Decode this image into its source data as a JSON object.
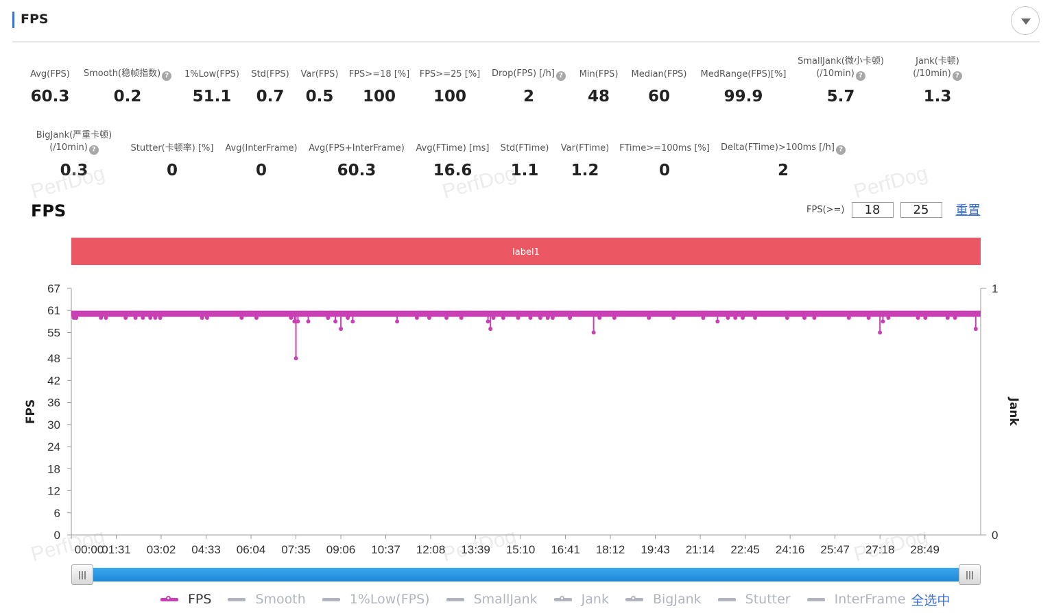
{
  "header": {
    "title": "FPS"
  },
  "metrics_row1": [
    {
      "label": "Avg(FPS)",
      "value": "60.3",
      "help": false
    },
    {
      "label": "Smooth(稳帧指数)",
      "value": "0.2",
      "help": true
    },
    {
      "label": "1%Low(FPS)",
      "value": "51.1",
      "help": false
    },
    {
      "label": "Std(FPS)",
      "value": "0.7",
      "help": false
    },
    {
      "label": "Var(FPS)",
      "value": "0.5",
      "help": false
    },
    {
      "label": "FPS>=18 [%]",
      "value": "100",
      "help": false
    },
    {
      "label": "FPS>=25 [%]",
      "value": "100",
      "help": false
    },
    {
      "label": "Drop(FPS) [/h]",
      "value": "2",
      "help": true
    },
    {
      "label": "Min(FPS)",
      "value": "48",
      "help": false
    },
    {
      "label": "Median(FPS)",
      "value": "60",
      "help": false
    },
    {
      "label": "MedRange(FPS)[%]",
      "value": "99.9",
      "help": false
    },
    {
      "label": "SmallJank(微小卡顿)",
      "label2": "(/10min)",
      "value": "5.7",
      "help": true
    },
    {
      "label": "Jank(卡顿)",
      "label2": "(/10min)",
      "value": "1.3",
      "help": true
    }
  ],
  "metrics_row2": [
    {
      "label": "BigJank(严重卡顿)",
      "label2": "(/10min)",
      "value": "0.3",
      "help": true
    },
    {
      "label": "Stutter(卡顿率) [%]",
      "value": "0",
      "help": false
    },
    {
      "label": "Avg(InterFrame)",
      "value": "0",
      "help": false
    },
    {
      "label": "Avg(FPS+InterFrame)",
      "value": "60.3",
      "help": false
    },
    {
      "label": "Avg(FTime) [ms]",
      "value": "16.6",
      "help": false
    },
    {
      "label": "Std(FTime)",
      "value": "1.1",
      "help": false
    },
    {
      "label": "Var(FTime)",
      "value": "1.2",
      "help": false
    },
    {
      "label": "FTime>=100ms [%]",
      "value": "0",
      "help": false
    },
    {
      "label": "Delta(FTime)>100ms [/h]",
      "value": "2",
      "help": true
    }
  ],
  "chart_section": {
    "title": "FPS",
    "filter_label": "FPS(>=)",
    "threshold_1": "18",
    "threshold_2": "25",
    "reset_label": "重置",
    "band_label": "label1"
  },
  "watermark": "PerfDog",
  "legend": [
    {
      "name": "FPS",
      "active": true,
      "color": "#c940b5",
      "dot": true
    },
    {
      "name": "Smooth",
      "active": false,
      "color": "#b0b4bf",
      "dot": false
    },
    {
      "name": "1%Low(FPS)",
      "active": false,
      "color": "#b0b4bf",
      "dot": false
    },
    {
      "name": "SmallJank",
      "active": false,
      "color": "#b0b4bf",
      "dot": false
    },
    {
      "name": "Jank",
      "active": false,
      "color": "#b0b4bf",
      "dot": true
    },
    {
      "name": "BigJank",
      "active": false,
      "color": "#b0b4bf",
      "dot": true
    },
    {
      "name": "Stutter",
      "active": false,
      "color": "#b0b4bf",
      "dot": false
    },
    {
      "name": "InterFrame",
      "active": false,
      "color": "#b0b4bf",
      "dot": false
    }
  ],
  "select_all_label": "全选中",
  "colors": {
    "accent": "#3b6fd8",
    "fps_series": "#c940b5",
    "band": "#eb5763",
    "scroll": "#2a97e6"
  },
  "chart_data": {
    "type": "line",
    "ylabel": "FPS",
    "y2label": "Jank",
    "ylim": [
      0,
      67
    ],
    "yticks": [
      0,
      6,
      12,
      18,
      24,
      30,
      36,
      42,
      48,
      55,
      61,
      67
    ],
    "y2ticks": [
      0,
      1
    ],
    "xlim_seconds": [
      0,
      1842
    ],
    "xticks": [
      "00:00",
      "01:31",
      "03:02",
      "04:33",
      "06:04",
      "07:35",
      "09:06",
      "10:37",
      "12:08",
      "13:39",
      "15:10",
      "16:41",
      "18:12",
      "19:43",
      "21:14",
      "22:45",
      "24:16",
      "25:47",
      "27:18",
      "28:49"
    ],
    "grid": false,
    "series": [
      {
        "name": "FPS",
        "baseline": 60,
        "dips": [
          {
            "t": "07:35",
            "value": 48
          },
          {
            "t": "09:06",
            "value": 56
          },
          {
            "t": "14:09",
            "value": 56
          },
          {
            "t": "17:38",
            "value": 55
          },
          {
            "t": "27:18",
            "value": 55
          },
          {
            "t": "30:32",
            "value": 56
          },
          {
            "t": "07:32",
            "value": 58
          },
          {
            "t": "08:55",
            "value": 58
          },
          {
            "t": "09:30",
            "value": 58
          },
          {
            "t": "11:00",
            "value": 58
          },
          {
            "t": "14:04",
            "value": 58
          },
          {
            "t": "21:49",
            "value": 58
          },
          {
            "t": "07:39",
            "value": 58
          },
          {
            "t": "08:00",
            "value": 58
          },
          {
            "t": "27:24",
            "value": 58
          },
          {
            "t": "00:05",
            "value": 59
          },
          {
            "t": "00:10",
            "value": 59
          },
          {
            "t": "01:00",
            "value": 59
          },
          {
            "t": "01:10",
            "value": 59
          },
          {
            "t": "01:50",
            "value": 59
          },
          {
            "t": "02:10",
            "value": 59
          },
          {
            "t": "02:25",
            "value": 59
          },
          {
            "t": "02:40",
            "value": 59
          },
          {
            "t": "02:50",
            "value": 59
          },
          {
            "t": "03:00",
            "value": 59
          },
          {
            "t": "04:25",
            "value": 59
          },
          {
            "t": "04:35",
            "value": 59
          },
          {
            "t": "05:45",
            "value": 59
          },
          {
            "t": "06:15",
            "value": 59
          },
          {
            "t": "07:25",
            "value": 59
          },
          {
            "t": "08:40",
            "value": 59
          },
          {
            "t": "09:20",
            "value": 59
          },
          {
            "t": "11:40",
            "value": 59
          },
          {
            "t": "12:05",
            "value": 59
          },
          {
            "t": "12:40",
            "value": 59
          },
          {
            "t": "13:10",
            "value": 59
          },
          {
            "t": "14:15",
            "value": 59
          },
          {
            "t": "14:35",
            "value": 59
          },
          {
            "t": "15:05",
            "value": 59
          },
          {
            "t": "15:30",
            "value": 59
          },
          {
            "t": "15:50",
            "value": 59
          },
          {
            "t": "16:05",
            "value": 59
          },
          {
            "t": "16:15",
            "value": 59
          },
          {
            "t": "16:50",
            "value": 59
          },
          {
            "t": "17:50",
            "value": 59
          },
          {
            "t": "18:20",
            "value": 59
          },
          {
            "t": "19:30",
            "value": 59
          },
          {
            "t": "20:20",
            "value": 59
          },
          {
            "t": "21:20",
            "value": 59
          },
          {
            "t": "22:10",
            "value": 59
          },
          {
            "t": "22:25",
            "value": 59
          },
          {
            "t": "22:40",
            "value": 59
          },
          {
            "t": "23:05",
            "value": 59
          },
          {
            "t": "24:10",
            "value": 59
          },
          {
            "t": "24:45",
            "value": 59
          },
          {
            "t": "25:05",
            "value": 59
          },
          {
            "t": "26:15",
            "value": 59
          },
          {
            "t": "26:55",
            "value": 59
          },
          {
            "t": "27:35",
            "value": 59
          },
          {
            "t": "28:35",
            "value": 59
          },
          {
            "t": "28:50",
            "value": 59
          },
          {
            "t": "29:35",
            "value": 59
          },
          {
            "t": "29:50",
            "value": 59
          }
        ]
      }
    ]
  }
}
